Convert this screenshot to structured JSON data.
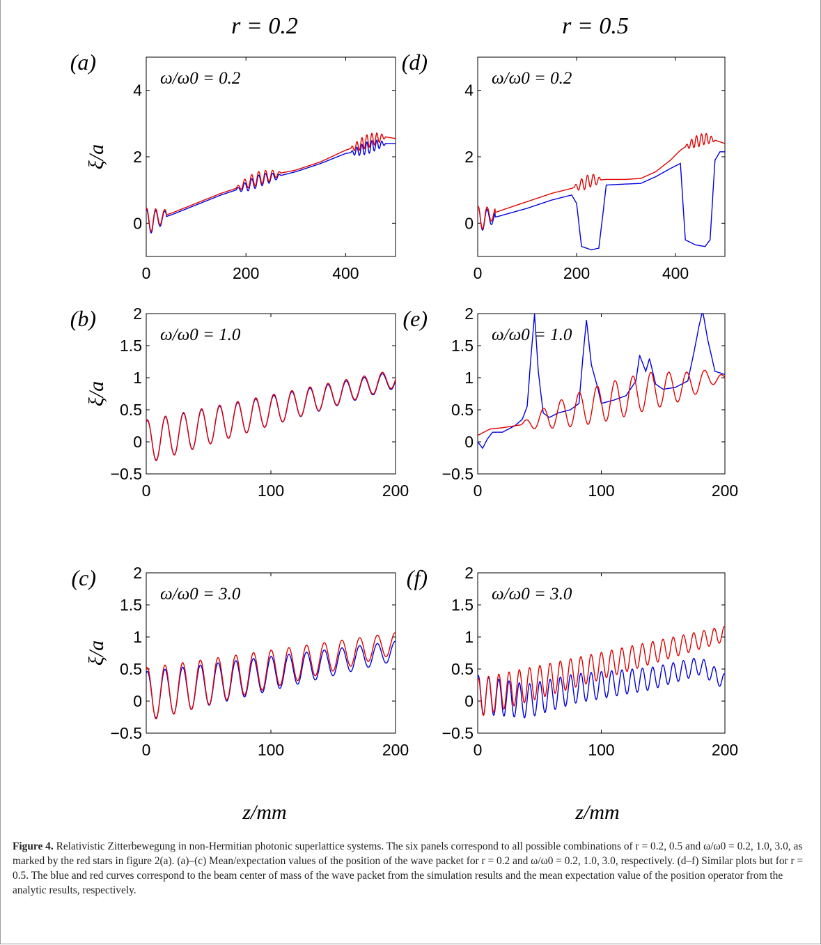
{
  "columns": [
    {
      "heading": "r = 0.2"
    },
    {
      "heading": "r = 0.5"
    }
  ],
  "xlabel": "z/mm",
  "ylabel": "ξ/a",
  "colors": {
    "simulation": "#0000dd",
    "analytic": "#e00000"
  },
  "chart_data": [
    {
      "id": "a",
      "panel_label": "(a)",
      "annotation": "ω/ω0 = 0.2",
      "type": "line",
      "xlim": [
        0,
        500
      ],
      "ylim": [
        -1,
        5
      ],
      "xticks": [
        "0",
        "200",
        "400"
      ],
      "yticks": [
        "0",
        "2",
        "4"
      ],
      "series": [
        {
          "color": "blue",
          "x": [
            0,
            50,
            100,
            150,
            180,
            200,
            215,
            230,
            245,
            260,
            300,
            350,
            400,
            420,
            440,
            460,
            480,
            500
          ],
          "y": [
            0,
            0.25,
            0.55,
            0.85,
            1.0,
            1.1,
            1.2,
            1.3,
            1.35,
            1.4,
            1.55,
            1.8,
            2.1,
            2.15,
            2.25,
            2.35,
            2.4,
            2.4
          ],
          "osc": [
            [
              0,
              40,
              18,
              0.4
            ],
            [
              180,
              270,
              14,
              0.18
            ],
            [
              410,
              480,
              10,
              0.18
            ]
          ]
        },
        {
          "color": "red",
          "x": [
            0,
            50,
            100,
            150,
            180,
            200,
            215,
            230,
            245,
            260,
            300,
            350,
            400,
            420,
            440,
            460,
            480,
            500
          ],
          "y": [
            0.05,
            0.3,
            0.6,
            0.9,
            1.05,
            1.2,
            1.3,
            1.38,
            1.42,
            1.48,
            1.6,
            1.85,
            2.2,
            2.3,
            2.45,
            2.55,
            2.6,
            2.55
          ],
          "osc": [
            [
              0,
              40,
              18,
              0.4
            ],
            [
              180,
              270,
              14,
              0.2
            ],
            [
              410,
              480,
              10,
              0.2
            ]
          ]
        }
      ]
    },
    {
      "id": "b",
      "panel_label": "(b)",
      "annotation": "ω/ω0 = 1.0",
      "type": "line",
      "xlim": [
        0,
        200
      ],
      "ylim": [
        -0.5,
        2
      ],
      "xticks": [
        "0",
        "100",
        "200"
      ],
      "yticks": [
        "−0.5",
        "0",
        "0.5",
        "1",
        "1.5",
        "2"
      ],
      "series": [
        {
          "color": "blue",
          "x": [
            0,
            200
          ],
          "y": [
            0.0,
            0.97
          ],
          "osc": [
            [
              0,
              200,
              14.5,
              0.33
            ]
          ]
        },
        {
          "color": "red",
          "x": [
            0,
            200
          ],
          "y": [
            0.0,
            0.99
          ],
          "osc": [
            [
              0,
              200,
              14.5,
              0.34
            ]
          ]
        }
      ]
    },
    {
      "id": "c",
      "panel_label": "(c)",
      "annotation": "ω/ω0 = 3.0",
      "type": "line",
      "xlim": [
        0,
        200
      ],
      "ylim": [
        -0.5,
        2
      ],
      "xticks": [
        "0",
        "100",
        "200"
      ],
      "yticks": [
        "−0.5",
        "0",
        "0.5",
        "1",
        "1.5",
        "2"
      ],
      "series": [
        {
          "color": "blue",
          "x": [
            0,
            200
          ],
          "y": [
            0.08,
            0.78
          ],
          "osc": [
            [
              0,
              200,
              14.2,
              0.38
            ]
          ]
        },
        {
          "color": "red",
          "x": [
            0,
            200
          ],
          "y": [
            0.1,
            0.9
          ],
          "osc": [
            [
              0,
              200,
              14.2,
              0.42
            ]
          ]
        }
      ]
    },
    {
      "id": "d",
      "panel_label": "(d)",
      "annotation": "ω/ω0 = 0.2",
      "type": "line",
      "xlim": [
        0,
        500
      ],
      "ylim": [
        -1,
        5
      ],
      "xticks": [
        "0",
        "200",
        "400"
      ],
      "yticks": [
        "0",
        "2",
        "4"
      ],
      "series": [
        {
          "color": "blue",
          "x": [
            0,
            40,
            100,
            150,
            190,
            200,
            210,
            230,
            245,
            255,
            260,
            300,
            330,
            360,
            390,
            410,
            420,
            440,
            460,
            470,
            480,
            490,
            500
          ],
          "y": [
            0.1,
            0.2,
            0.45,
            0.7,
            0.85,
            0.6,
            -0.7,
            -0.8,
            -0.75,
            0.5,
            1.15,
            1.18,
            1.2,
            1.4,
            1.65,
            1.8,
            -0.5,
            -0.65,
            -0.7,
            -0.5,
            1.9,
            2.15,
            2.15
          ],
          "osc": [
            [
              0,
              35,
              18,
              0.4
            ]
          ]
        },
        {
          "color": "red",
          "x": [
            0,
            40,
            100,
            150,
            190,
            200,
            215,
            230,
            245,
            260,
            300,
            330,
            360,
            390,
            410,
            420,
            440,
            460,
            480,
            500
          ],
          "y": [
            0.1,
            0.35,
            0.65,
            0.9,
            1.05,
            1.1,
            1.2,
            1.3,
            1.3,
            1.32,
            1.32,
            1.35,
            1.55,
            1.9,
            2.2,
            2.3,
            2.45,
            2.55,
            2.5,
            2.4
          ],
          "osc": [
            [
              0,
              35,
              18,
              0.4
            ],
            [
              195,
              250,
              12,
              0.2
            ],
            [
              420,
              480,
              10,
              0.18
            ]
          ]
        }
      ]
    },
    {
      "id": "e",
      "panel_label": "(e)",
      "annotation": "ω/ω0 = 1.0",
      "type": "line",
      "xlim": [
        0,
        200
      ],
      "ylim": [
        -0.5,
        2
      ],
      "xticks": [
        "0",
        "100",
        "200"
      ],
      "yticks": [
        "−0.5",
        "0",
        "0.5",
        "1",
        "1.5",
        "2"
      ],
      "series": [
        {
          "color": "blue",
          "x": [
            0,
            4,
            8,
            12,
            20,
            30,
            36,
            40,
            43,
            46,
            49,
            53,
            58,
            65,
            75,
            82,
            85,
            88,
            92,
            97,
            100,
            110,
            120,
            128,
            131,
            136,
            139,
            144,
            150,
            160,
            170,
            175,
            179,
            182,
            186,
            192,
            200
          ],
          "y": [
            0.0,
            -0.1,
            0.05,
            0.15,
            0.15,
            0.25,
            0.35,
            0.55,
            1.3,
            2.0,
            1.1,
            0.45,
            0.38,
            0.45,
            0.5,
            0.6,
            1.3,
            1.9,
            1.2,
            0.85,
            0.6,
            0.65,
            0.72,
            0.95,
            1.35,
            1.1,
            1.3,
            0.9,
            0.82,
            0.85,
            0.95,
            1.4,
            1.8,
            2.05,
            1.6,
            1.1,
            1.05
          ],
          "osc": []
        },
        {
          "color": "red",
          "x": [
            0,
            10,
            20,
            30,
            40,
            50,
            60,
            70,
            80,
            90,
            100,
            110,
            120,
            130,
            140,
            150,
            160,
            170,
            180,
            190,
            200
          ],
          "y": [
            0.1,
            0.2,
            0.22,
            0.25,
            0.28,
            0.35,
            0.4,
            0.45,
            0.5,
            0.55,
            0.6,
            0.65,
            0.7,
            0.75,
            0.8,
            0.82,
            0.85,
            0.88,
            0.95,
            1.0,
            1.0
          ],
          "osc": [
            [
              35,
              200,
              14.5,
              0.3
            ]
          ]
        }
      ]
    },
    {
      "id": "f",
      "panel_label": "(f)",
      "annotation": "ω/ω0 = 3.0",
      "type": "line",
      "xlim": [
        0,
        200
      ],
      "ylim": [
        -0.5,
        2
      ],
      "xticks": [
        "0",
        "100",
        "200"
      ],
      "yticks": [
        "−0.5",
        "0",
        "0.5",
        "1",
        "1.5",
        "2"
      ],
      "series": [
        {
          "color": "blue",
          "x": [
            0,
            20,
            40,
            60,
            80,
            100,
            120,
            140,
            160,
            180,
            200
          ],
          "y": [
            0.1,
            0.05,
            0.0,
            0.1,
            0.2,
            0.25,
            0.3,
            0.35,
            0.45,
            0.55,
            0.3
          ],
          "osc": [
            [
              0,
              200,
              8.3,
              0.3
            ]
          ]
        },
        {
          "color": "red",
          "x": [
            0,
            200
          ],
          "y": [
            0.05,
            1.05
          ],
          "osc": [
            [
              0,
              200,
              8.3,
              0.3
            ]
          ]
        }
      ]
    }
  ],
  "caption": {
    "label": "Figure 4.",
    "text": "Relativistic Zitterbewegung in non-Hermitian photonic superlattice systems. The six panels correspond to all possible combinations of r = 0.2, 0.5 and ω/ω0 = 0.2, 1.0, 3.0, as marked by the red stars in figure 2(a). (a)–(c) Mean/expectation values of the position of the wave packet for r = 0.2 and ω/ω0 = 0.2, 1.0, 3.0, respectively. (d–f) Similar plots but for r = 0.5. The blue and red curves correspond to the beam center of mass of the wave packet from the simulation results and the mean expectation value of the position operator from the analytic results, respectively."
  }
}
